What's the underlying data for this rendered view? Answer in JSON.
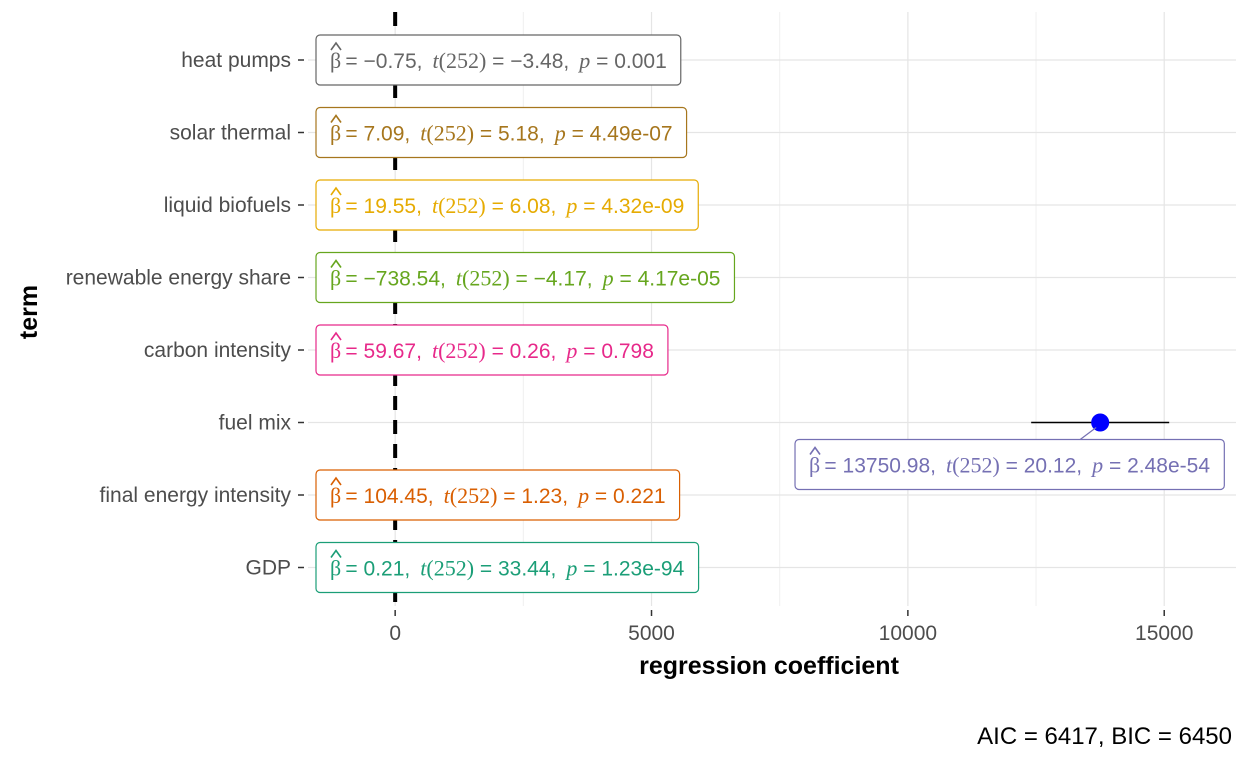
{
  "chart_data": {
    "type": "coefficient-plot",
    "xlabel": "regression coefficient",
    "ylabel": "term",
    "xlim": [
      -1700,
      16400
    ],
    "xticks": [
      0,
      5000,
      10000,
      15000
    ],
    "xtick_labels": [
      "0",
      "5000",
      "10000",
      "15000"
    ],
    "reference_line": 0,
    "grid": true,
    "caption": "AIC = 6417, BIC = 6450",
    "terms": [
      {
        "term": "heat pumps",
        "estimate": -0.75,
        "ci": [
          -1.2,
          -0.3
        ],
        "label": {
          "beta": "−0.75",
          "t": "−3.48",
          "p": "0.001",
          "p_op": "="
        },
        "color": "#666666"
      },
      {
        "term": "solar thermal",
        "estimate": 7.09,
        "ci": [
          4.4,
          9.8
        ],
        "label": {
          "beta": "7.09",
          "t": "5.18",
          "p": "4.49e-07",
          "p_op": "="
        },
        "color": "#A6761D"
      },
      {
        "term": "liquid biofuels",
        "estimate": 19.55,
        "ci": [
          13.2,
          25.9
        ],
        "label": {
          "beta": "19.55",
          "t": "6.08",
          "p": "4.32e-09",
          "p_op": "="
        },
        "color": "#E6AB02"
      },
      {
        "term": "renewable energy share",
        "estimate": -738.54,
        "ci": [
          -1087,
          -390
        ],
        "label": {
          "beta": "−738.54",
          "t": "−4.17",
          "p": "4.17e-05",
          "p_op": "="
        },
        "color": "#66A61E"
      },
      {
        "term": "carbon intensity",
        "estimate": 59.67,
        "ci": [
          -392,
          511
        ],
        "label": {
          "beta": "59.67",
          "t": "0.26",
          "p": "0.798",
          "p_op": "="
        },
        "color": "#E7298A"
      },
      {
        "term": "fuel mix",
        "estimate": 13750.98,
        "ci": [
          12405,
          15097
        ],
        "label": {
          "beta": "13750.98",
          "t": "20.12",
          "p": "2.48e-54",
          "p_op": "="
        },
        "color": "#7570B3"
      },
      {
        "term": "final energy intensity",
        "estimate": 104.45,
        "ci": [
          -63,
          272
        ],
        "label": {
          "beta": "104.45",
          "t": "1.23",
          "p": "0.221",
          "p_op": "="
        },
        "color": "#D95F02"
      },
      {
        "term": "GDP",
        "estimate": 0.21,
        "ci": [
          0.2,
          0.22
        ],
        "label": {
          "beta": "0.21",
          "t": "33.44",
          "p": "1.23e-94",
          "p_op": "="
        },
        "color": "#1B9E77"
      }
    ],
    "label_df": "252",
    "point_color": "#0000FF"
  }
}
